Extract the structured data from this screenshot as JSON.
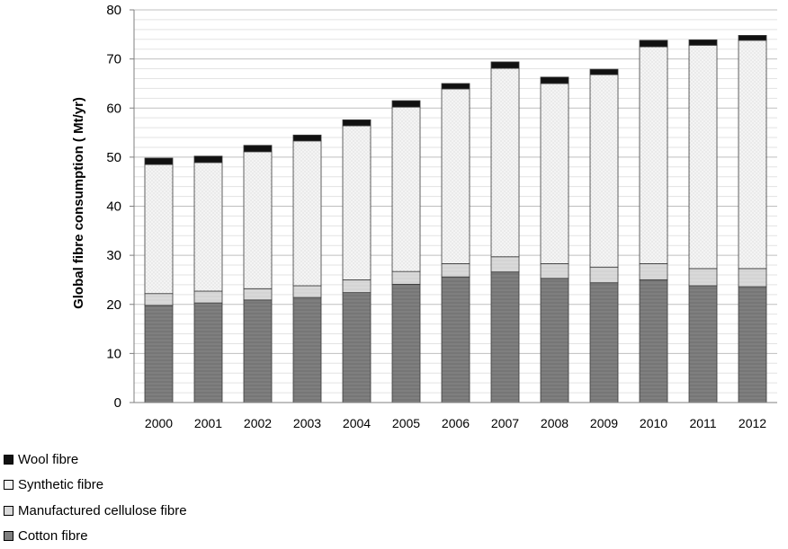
{
  "chart_data": {
    "type": "bar",
    "stacked": true,
    "title": "",
    "xlabel": "",
    "ylabel": "Global fibre consumption ( Mt/yr)",
    "ylim": [
      0,
      80
    ],
    "yticks": [
      "0",
      "10",
      "20",
      "30",
      "40",
      "50",
      "60",
      "70",
      "80"
    ],
    "grid": true,
    "legend_position": "bottom-left",
    "categories": [
      "2000",
      "2001",
      "2002",
      "2003",
      "2004",
      "2005",
      "2006",
      "2007",
      "2008",
      "2009",
      "2010",
      "2011",
      "2012"
    ],
    "series": [
      {
        "name": "Cotton fibre",
        "color": "#7f7f7f",
        "values": [
          19.8,
          20.3,
          20.9,
          21.4,
          22.4,
          24.1,
          25.6,
          26.6,
          25.3,
          24.4,
          25.0,
          23.8,
          23.6
        ]
      },
      {
        "name": "Manufactured cellulose fibre",
        "color": "#d9d9d9",
        "values": [
          2.4,
          2.4,
          2.3,
          2.4,
          2.6,
          2.6,
          2.7,
          3.1,
          3.0,
          3.2,
          3.3,
          3.5,
          3.7
        ]
      },
      {
        "name": "Synthetic fibre",
        "color": "#f2f2f2",
        "values": [
          26.3,
          26.2,
          27.9,
          29.5,
          31.4,
          33.5,
          35.6,
          38.4,
          36.7,
          39.2,
          44.2,
          45.5,
          46.5
        ]
      },
      {
        "name": "Wool fibre",
        "color": "#111111",
        "values": [
          1.3,
          1.3,
          1.3,
          1.2,
          1.2,
          1.3,
          1.1,
          1.3,
          1.3,
          1.1,
          1.3,
          1.1,
          1.0
        ]
      }
    ]
  },
  "legend": {
    "items": [
      {
        "label": "Wool fibre",
        "swatch": "#111111"
      },
      {
        "label": "Synthetic fibre",
        "swatch": "#f2f2f2"
      },
      {
        "label": "Manufactured cellulose fibre",
        "swatch": "#d9d9d9"
      },
      {
        "label": "Cotton fibre",
        "swatch": "#7f7f7f"
      }
    ]
  }
}
